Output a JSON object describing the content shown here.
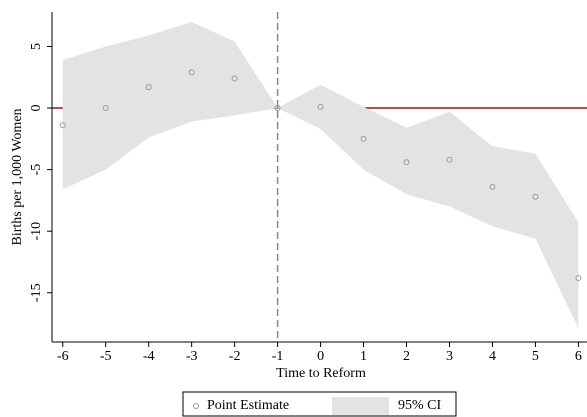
{
  "chart_data": {
    "type": "event-study",
    "x_label": "Time to Reform",
    "y_label": "Births per 1,000 Women",
    "x": [
      -6,
      -5,
      -4,
      -3,
      -2,
      -1,
      0,
      1,
      2,
      3,
      4,
      5,
      6
    ],
    "series": [
      {
        "name": "Point Estimate",
        "color": "#999999",
        "values": [
          -1.4,
          0,
          1.7,
          2.9,
          2.4,
          0,
          0.1,
          -2.5,
          -4.4,
          -4.2,
          -6.4,
          -7.2,
          -13.8
        ]
      }
    ],
    "ci": {
      "name": "95% CI",
      "color": "#e3e3e3",
      "upper": [
        3.9,
        5.0,
        5.9,
        7.0,
        5.4,
        0,
        1.9,
        0.1,
        -1.6,
        -0.3,
        -3.1,
        -3.7,
        -9.3
      ],
      "lower": [
        -6.6,
        -5.0,
        -2.4,
        -1.1,
        -0.6,
        0,
        -1.7,
        -5.0,
        -7.0,
        -8.0,
        -9.6,
        -10.6,
        -17.9
      ]
    },
    "hline": 0,
    "hline_color": "#8b1a1a",
    "vline": -1,
    "vline_color": "#888888",
    "xlim": [
      -6.25,
      6.2
    ],
    "ylim": [
      -19,
      7.8
    ],
    "xticks": [
      -6,
      -5,
      -4,
      -3,
      -2,
      -1,
      0,
      1,
      2,
      3,
      4,
      5,
      6
    ],
    "yticks": [
      5,
      0,
      -5,
      -10,
      -15
    ]
  }
}
